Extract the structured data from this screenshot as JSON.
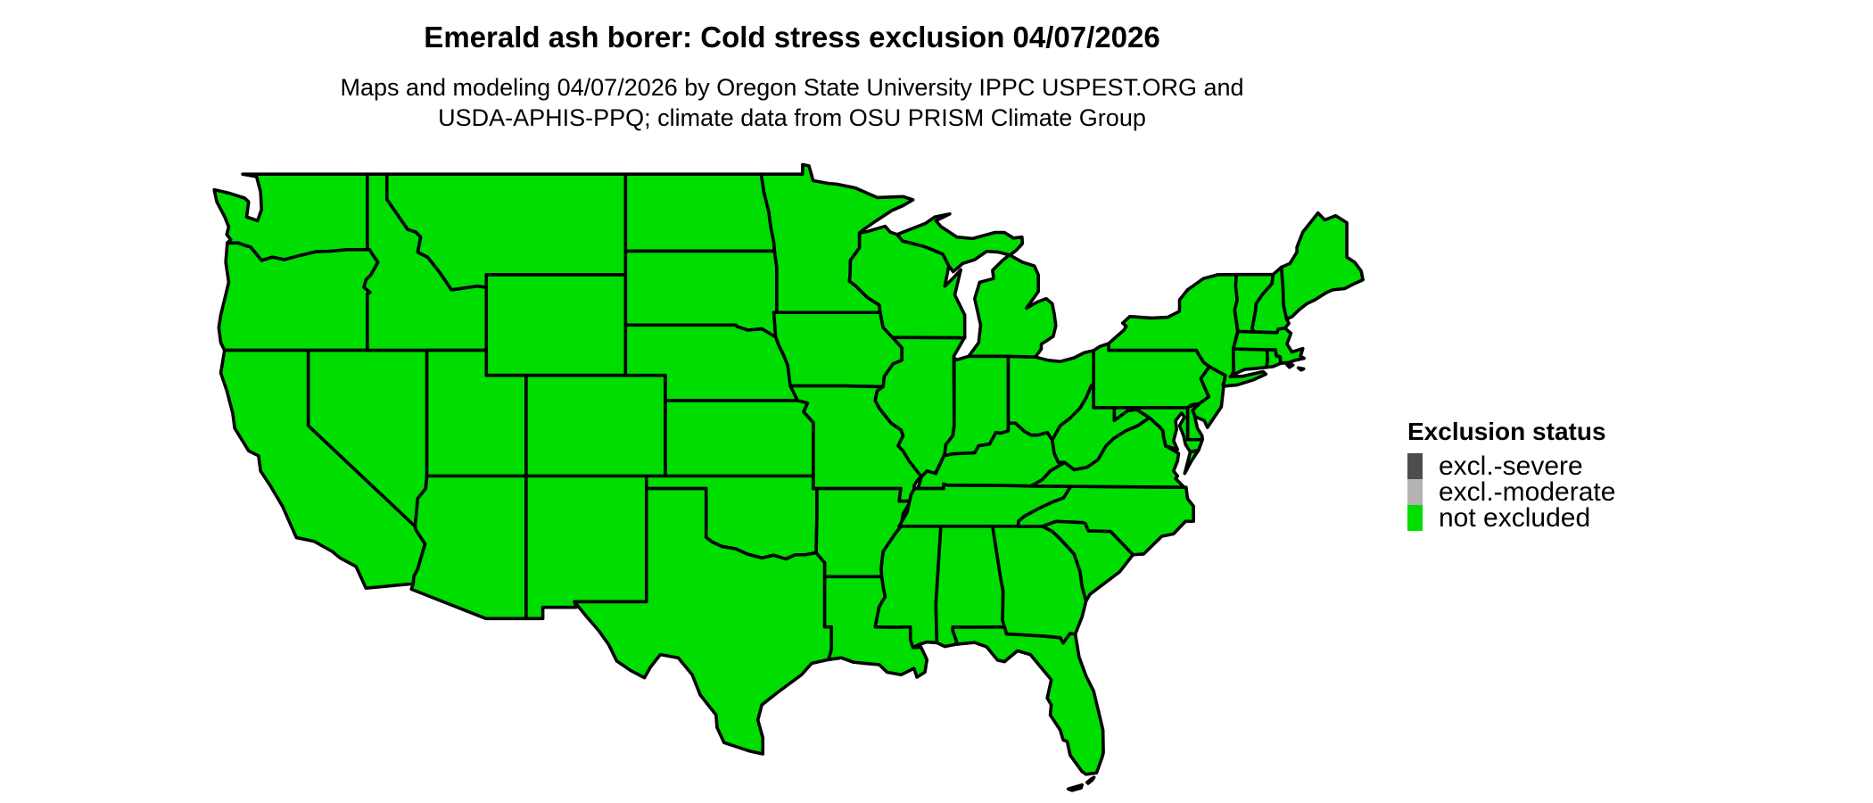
{
  "figure": {
    "title": "Emerald ash borer: Cold stress exclusion 04/07/2026",
    "subtitle_lines": [
      "Maps and modeling 04/07/2026 by Oregon State University IPPC USPEST.ORG and",
      "USDA-APHIS-PPQ; climate data from OSU PRISM Climate Group"
    ]
  },
  "legend": {
    "title": "Exclusion status",
    "items": [
      {
        "label": "excl.-severe",
        "color": "#4d4d4d"
      },
      {
        "label": "excl.-moderate",
        "color": "#b3b3b3"
      },
      {
        "label": "not excluded",
        "color": "#00dd00"
      }
    ]
  },
  "map": {
    "region": "conterminous United States",
    "status_shown": "not excluded",
    "fill_color": "#00dd00",
    "border_color": "#000000",
    "background_color": "#ffffff"
  }
}
